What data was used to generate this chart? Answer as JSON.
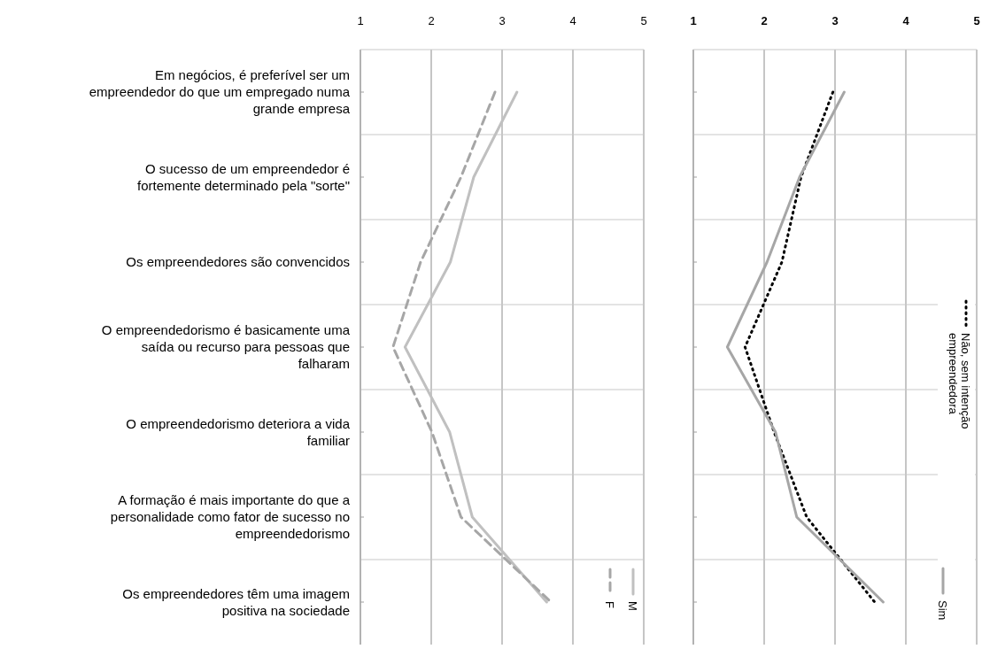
{
  "chart_data": [
    {
      "type": "line",
      "orientation": "horizontal",
      "categories": [
        "Em negócios, é preferível ser um empreendedor do que um empregado numa grande empresa",
        "O sucesso de um empreendedor é fortemente determinado pela \"sorte\"",
        "Os empreendedores são convencidos",
        "O empreendedorismo é basicamente uma saída ou recurso para pessoas que falharam",
        "O empreendedorismo deteriora a vida familiar",
        "A formação é mais importante do que a personalidade como fator de sucesso no empreendedorismo",
        "Os empreendedores têm uma imagem positiva na sociedade"
      ],
      "xlim": [
        1,
        5
      ],
      "xticks": [
        1,
        2,
        3,
        4,
        5
      ],
      "grid": true,
      "legend": "bottom right",
      "series": [
        {
          "name": "M",
          "color": "#c0c0c0",
          "line_style": "solid",
          "values": [
            3.21,
            2.6,
            2.27,
            1.63,
            2.26,
            2.58,
            3.63
          ]
        },
        {
          "name": "F",
          "color": "#a6a6a6",
          "line_style": "dashed",
          "values": [
            2.9,
            2.42,
            1.85,
            1.46,
            2.01,
            2.42,
            3.69
          ]
        }
      ]
    },
    {
      "type": "line",
      "orientation": "horizontal",
      "categories": [
        null,
        null,
        null,
        null,
        null,
        null,
        null
      ],
      "xlim": [
        1,
        5
      ],
      "xticks": [
        1,
        2,
        3,
        4,
        5
      ],
      "grid": true,
      "legend": "right",
      "series": [
        {
          "name": "Não, sem intenção empreendedora",
          "color": "#000000",
          "line_style": "dotted",
          "values": [
            2.97,
            2.52,
            2.25,
            1.73,
            2.14,
            2.6,
            3.56
          ]
        },
        {
          "name": "Sim",
          "color": "#a6a6a6",
          "line_style": "solid",
          "values": [
            3.13,
            2.5,
            2.04,
            1.48,
            2.16,
            2.46,
            3.68
          ]
        }
      ]
    }
  ]
}
